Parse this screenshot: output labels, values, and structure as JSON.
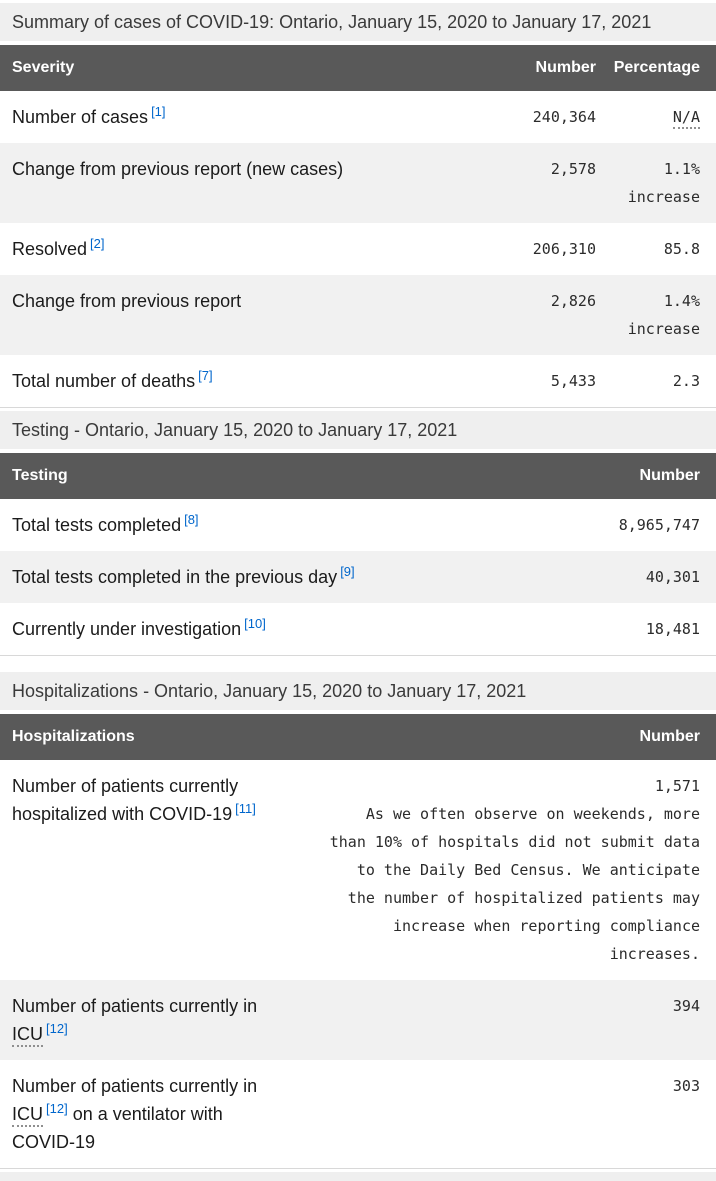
{
  "colors": {
    "table_header_bg": "#595959",
    "section_band_bg": "#efefef",
    "zebra_row_bg": "#f1f1f1",
    "footnote_link_blue": "#0066cc",
    "header_text": "#ffffff",
    "body_text": "#1b1b1b"
  },
  "summary": {
    "title": "Summary of cases of COVID-19: Ontario, January 15, 2020 to January 17, 2021",
    "head": {
      "c1": "Severity",
      "c2": "Number",
      "c3": "Percentage"
    },
    "rows": [
      {
        "label": "Number of cases",
        "fn": "[1]",
        "num": "240,364",
        "pct": "N/A"
      },
      {
        "label": "Change from previous report (new cases)",
        "num": "2,578",
        "pct": "1.1%",
        "pct_note": "increase"
      },
      {
        "label": "Resolved",
        "fn": "[2]",
        "num": "206,310",
        "pct": "85.8"
      },
      {
        "label": "Change from previous report",
        "num": "2,826",
        "pct": "1.4%",
        "pct_note": "increase"
      },
      {
        "label": "Total number of deaths",
        "fn": "[7]",
        "num": "5,433",
        "pct": "2.3"
      }
    ]
  },
  "testing": {
    "title": "Testing - Ontario, January 15, 2020 to January 17, 2021",
    "head": {
      "c1": "Testing",
      "c2": "Number"
    },
    "rows": [
      {
        "label": "Total tests completed",
        "fn": "[8]",
        "num": "8,965,747"
      },
      {
        "label": "Total tests completed in the previous day",
        "fn": "[9]",
        "num": "40,301"
      },
      {
        "label": "Currently under investigation",
        "fn": "[10]",
        "num": "18,481"
      }
    ]
  },
  "hospitalizations": {
    "title": "Hospitalizations - Ontario, January 15, 2020 to January 17, 2021",
    "head": {
      "c1": "Hospitalizations",
      "c2": "Number"
    },
    "rows": [
      {
        "label": "Number of patients currently hospitalized with COVID-19",
        "fn": "[11]",
        "num": "1,571",
        "note_lines": [
          "As we often observe on weekends, more",
          "than 10% of hospitals did not submit data",
          "to the Daily Bed Census. We anticipate",
          "the number of hospitalized patients may",
          "increase when reporting compliance",
          "increases."
        ]
      },
      {
        "label_pre": "Number of patients currently in",
        "abbr": "ICU",
        "fn": "[12]",
        "num": "394"
      },
      {
        "label_pre": "Number of patients currently in",
        "abbr": "ICU",
        "fn": "[12]",
        "label_post": "on a ventilator with COVID-19",
        "num": "303"
      }
    ]
  }
}
